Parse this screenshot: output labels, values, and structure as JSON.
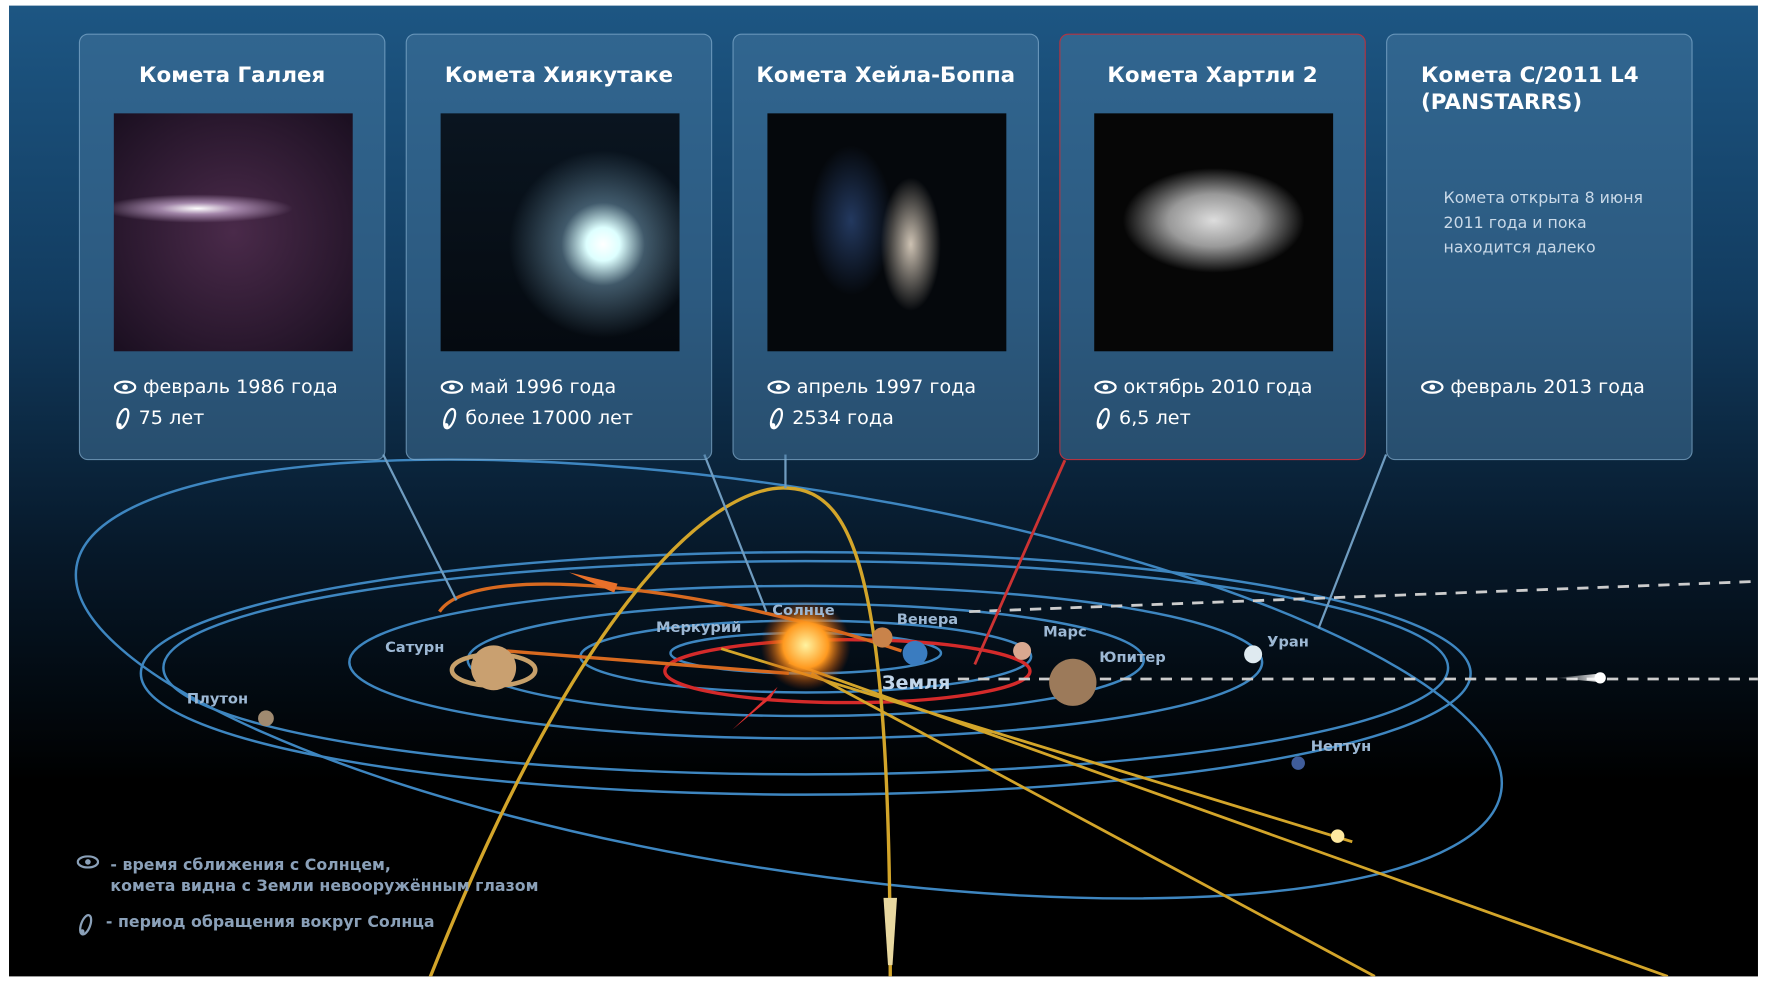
{
  "cards": [
    {
      "title": "Комета Галлея",
      "approach": "февраль 1986 года",
      "period": "75 лет"
    },
    {
      "title": "Комета Хиякутаке",
      "approach": "май 1996 года",
      "period": "более 17000 лет"
    },
    {
      "title": "Комета Хейла-Боппа",
      "approach": "апрель 1997 года",
      "period": "2534 года"
    },
    {
      "title": "Комета Хартли 2",
      "approach": "октябрь 2010 года",
      "period": "6,5 лет"
    },
    {
      "title": "Комета C/2011 L4 (PANSTARRS)",
      "description": "Комета открыта 8 июня 2011 года и пока находится далеко",
      "approach": "февраль 2013 года"
    }
  ],
  "planets": [
    "Солнце",
    "Меркурий",
    "Венера",
    "Земля",
    "Марс",
    "Юпитер",
    "Сатурн",
    "Уран",
    "Нептун",
    "Плутон"
  ],
  "legend": [
    [
      "- время сближения с Солнцем,",
      "комета видна с Земли невооружённым глазом"
    ],
    [
      "- период обращения вокруг Солнца"
    ]
  ]
}
